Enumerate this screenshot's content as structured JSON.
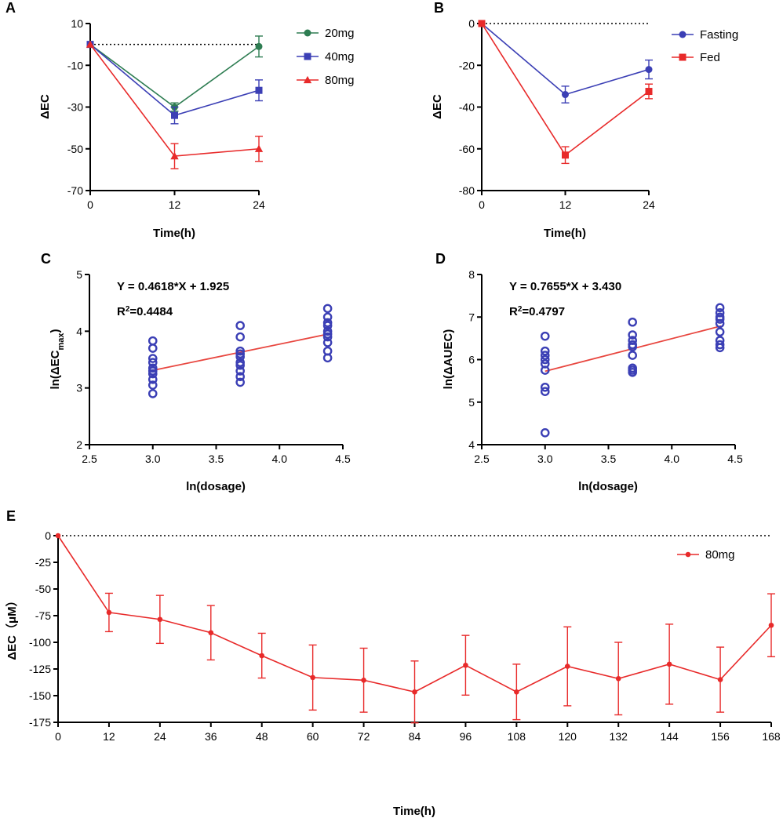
{
  "chart_data": [
    {
      "panel": "A",
      "type": "line",
      "x": [
        0,
        12,
        24
      ],
      "xlim": [
        0,
        24
      ],
      "ylim": [
        -70,
        10
      ],
      "xticks": [
        "0",
        "12",
        "24"
      ],
      "yticks": [
        "10",
        "-10",
        "-30",
        "-50",
        "-70"
      ],
      "xlabel": "Time(h)",
      "ylabel": "ΔEC",
      "reference_line": 0,
      "series": [
        {
          "name": "20mg",
          "color": "#2e7d52",
          "marker": "circle",
          "values": [
            0,
            -30,
            -1
          ],
          "errors": [
            0,
            2,
            5
          ]
        },
        {
          "name": "40mg",
          "color": "#3b3fb5",
          "marker": "square",
          "values": [
            0,
            -34,
            -22
          ],
          "errors": [
            0,
            4,
            5
          ]
        },
        {
          "name": "80mg",
          "color": "#e82a2a",
          "marker": "triangle",
          "values": [
            0,
            -53.5,
            -50
          ],
          "errors": [
            0,
            6,
            6
          ]
        }
      ]
    },
    {
      "panel": "B",
      "type": "line",
      "x": [
        0,
        12,
        24
      ],
      "xlim": [
        0,
        24
      ],
      "ylim": [
        -80,
        0
      ],
      "xticks": [
        "0",
        "12",
        "24"
      ],
      "yticks": [
        "0",
        "-20",
        "-40",
        "-60",
        "-80"
      ],
      "xlabel": "Time(h)",
      "ylabel": "ΔEC",
      "reference_line": 0,
      "series": [
        {
          "name": "Fasting",
          "color": "#3b3fb5",
          "marker": "circle",
          "values": [
            0,
            -34,
            -22
          ],
          "errors": [
            0,
            4,
            4.5
          ]
        },
        {
          "name": "Fed",
          "color": "#e82a2a",
          "marker": "square",
          "values": [
            0,
            -63,
            -32.5
          ],
          "errors": [
            0,
            4,
            3.5
          ]
        }
      ]
    },
    {
      "panel": "C",
      "type": "scatter",
      "xlim": [
        2.5,
        4.5
      ],
      "ylim": [
        2,
        5
      ],
      "xticks": [
        "2.5",
        "3.0",
        "3.5",
        "4.0",
        "4.5"
      ],
      "yticks": [
        "5",
        "4",
        "3",
        "2"
      ],
      "xlabel": "ln(dosage)",
      "ylabel_main": "ln(ΔEC",
      "ylabel_sub": "max",
      "ylabel_end": ")",
      "equation": "Y = 0.4618*X + 1.925",
      "r2_prefix": "R",
      "r2_sup": "2",
      "r2_value": "=0.4484",
      "fit": {
        "slope": 0.4618,
        "intercept": 1.925,
        "x_range": [
          3.0,
          4.39
        ]
      },
      "color": "#3b3fb5",
      "fit_color": "#e8463f",
      "points": [
        {
          "x": 3.0,
          "y": [
            3.83,
            3.7,
            3.52,
            3.45,
            3.35,
            3.3,
            3.25,
            3.15,
            3.05,
            2.9
          ]
        },
        {
          "x": 3.69,
          "y": [
            4.1,
            3.9,
            3.65,
            3.6,
            3.55,
            3.45,
            3.4,
            3.3,
            3.2,
            3.1
          ]
        },
        {
          "x": 4.38,
          "y": [
            4.4,
            4.25,
            4.15,
            4.1,
            4.0,
            3.95,
            3.9,
            3.8,
            3.65,
            3.53
          ]
        }
      ]
    },
    {
      "panel": "D",
      "type": "scatter",
      "xlim": [
        2.5,
        4.5
      ],
      "ylim": [
        4,
        8
      ],
      "xticks": [
        "2.5",
        "3.0",
        "3.5",
        "4.0",
        "4.5"
      ],
      "yticks": [
        "8",
        "7",
        "6",
        "5",
        "4"
      ],
      "xlabel": "ln(dosage)",
      "ylabel_main": "ln(ΔAUEC)",
      "equation": "Y = 0.7655*X + 3.430",
      "r2_prefix": "R",
      "r2_sup": "2",
      "r2_value": "=0.4797",
      "fit": {
        "slope": 0.7655,
        "intercept": 3.43,
        "x_range": [
          3.0,
          4.39
        ]
      },
      "color": "#3b3fb5",
      "fit_color": "#e8463f",
      "points": [
        {
          "x": 3.0,
          "y": [
            6.55,
            6.2,
            6.1,
            6.0,
            5.9,
            5.75,
            5.35,
            5.25,
            4.28
          ]
        },
        {
          "x": 3.69,
          "y": [
            6.88,
            6.58,
            6.45,
            6.35,
            6.3,
            6.1,
            5.8,
            5.75,
            5.7
          ]
        },
        {
          "x": 4.38,
          "y": [
            7.22,
            7.1,
            7.0,
            6.95,
            6.85,
            6.65,
            6.45,
            6.35,
            6.28
          ]
        }
      ]
    },
    {
      "panel": "E",
      "type": "line",
      "x": [
        0,
        12,
        24,
        36,
        48,
        60,
        72,
        84,
        96,
        108,
        120,
        132,
        144,
        156,
        168
      ],
      "xlim": [
        0,
        168
      ],
      "ylim": [
        -175,
        0
      ],
      "xticks": [
        "0",
        "12",
        "24",
        "36",
        "48",
        "60",
        "72",
        "84",
        "96",
        "108",
        "120",
        "132",
        "144",
        "156",
        "168"
      ],
      "yticks": [
        "0",
        "-25",
        "-50",
        "-75",
        "-100",
        "-125",
        "-150",
        "-175"
      ],
      "xlabel": "Time(h)",
      "ylabel": "ΔEC（μM）",
      "reference_line": 0,
      "series": [
        {
          "name": "80mg",
          "color": "#e82a2a",
          "marker": "circle",
          "values": [
            0,
            -72,
            -78.5,
            -91,
            -112.5,
            -133,
            -135.5,
            -146.5,
            -121.5,
            -146.5,
            -122.5,
            -134,
            -120.5,
            -135,
            -84
          ],
          "errors": [
            0,
            18,
            22.5,
            25.5,
            21,
            30.5,
            30,
            29,
            28,
            26,
            37,
            34,
            37.5,
            30.5,
            29.5
          ]
        }
      ]
    }
  ]
}
